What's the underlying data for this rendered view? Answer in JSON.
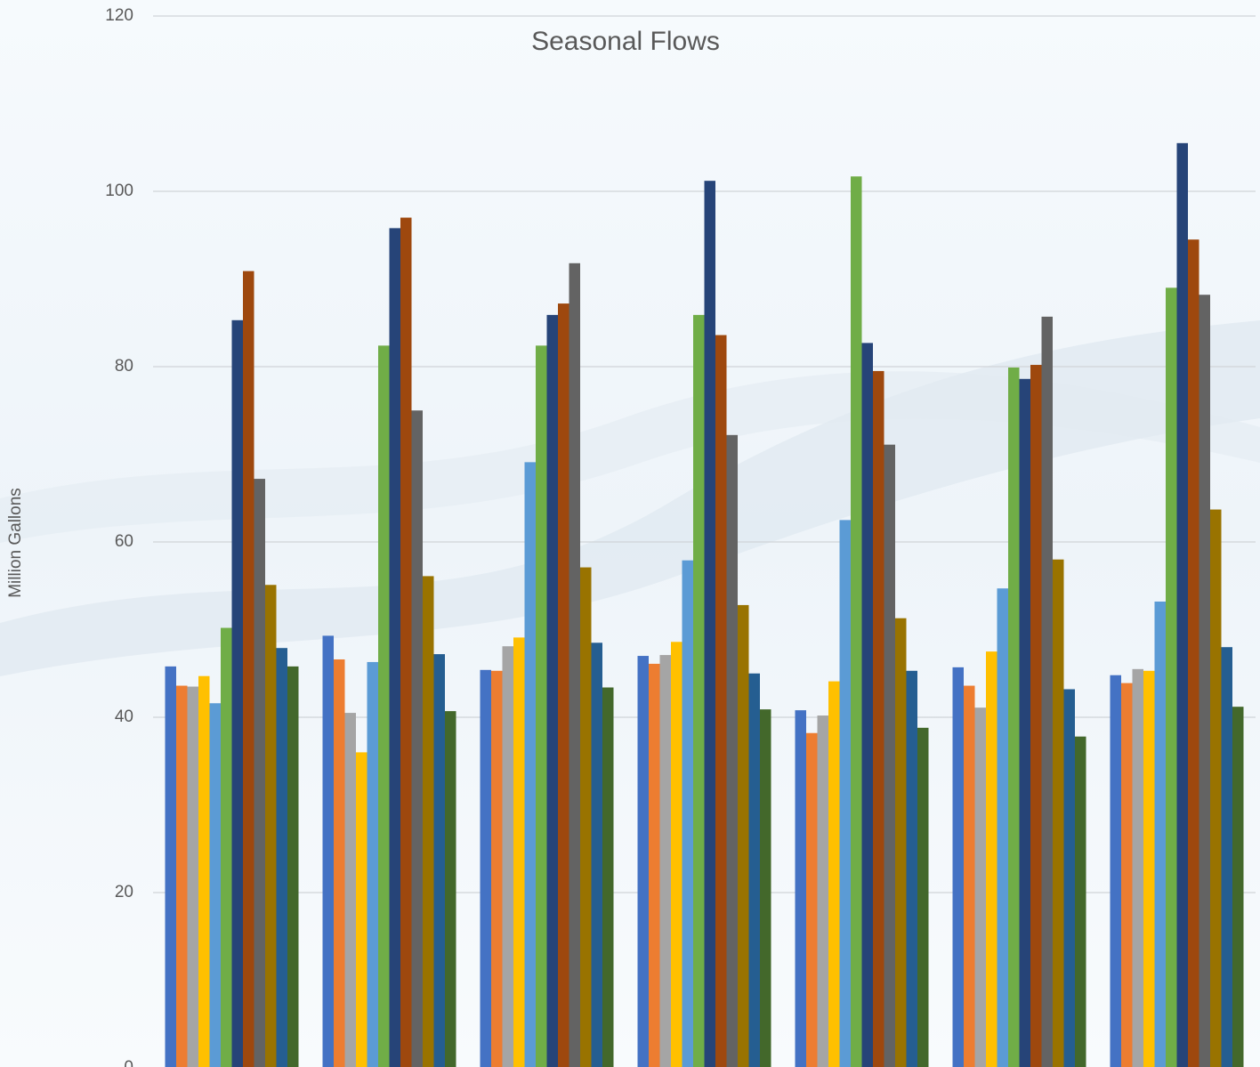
{
  "chart_data": {
    "type": "bar",
    "title": "Seasonal Flows",
    "y_label": "Million Gallons",
    "categories": [
      null,
      null,
      null,
      null,
      null,
      null,
      null
    ],
    "series": [
      {
        "color": "#4472c4",
        "values": [
          45.8,
          49.3,
          45.4,
          47.0,
          40.8,
          45.7,
          44.8
        ]
      },
      {
        "color": "#ed7d31",
        "values": [
          43.6,
          46.6,
          45.3,
          46.1,
          38.2,
          43.6,
          43.9
        ]
      },
      {
        "color": "#a5a5a5",
        "values": [
          43.5,
          40.5,
          48.1,
          47.1,
          40.2,
          41.1,
          45.5
        ]
      },
      {
        "color": "#ffc000",
        "values": [
          44.7,
          36.0,
          49.1,
          48.6,
          44.1,
          47.5,
          45.3
        ]
      },
      {
        "color": "#5b9bd5",
        "values": [
          41.6,
          46.3,
          69.1,
          57.9,
          62.5,
          54.7,
          53.2
        ]
      },
      {
        "color": "#70ad47",
        "values": [
          50.2,
          82.4,
          82.4,
          85.9,
          101.7,
          79.9,
          89.0
        ]
      },
      {
        "color": "#264478",
        "values": [
          85.3,
          95.8,
          85.9,
          101.2,
          82.7,
          78.6,
          105.5
        ]
      },
      {
        "color": "#9e480e",
        "values": [
          90.9,
          97.0,
          87.2,
          83.6,
          79.5,
          80.2,
          94.5
        ]
      },
      {
        "color": "#636363",
        "values": [
          67.2,
          75.0,
          91.8,
          72.2,
          71.1,
          85.7,
          88.2
        ]
      },
      {
        "color": "#997300",
        "values": [
          55.1,
          56.1,
          57.1,
          52.8,
          51.3,
          58.0,
          63.7
        ]
      },
      {
        "color": "#255e91",
        "values": [
          47.9,
          47.2,
          48.5,
          45.0,
          45.3,
          43.2,
          48.0
        ]
      },
      {
        "color": "#43682b",
        "values": [
          45.8,
          40.7,
          43.4,
          40.9,
          38.8,
          37.8,
          41.2
        ]
      }
    ],
    "ylim": [
      0,
      120
    ],
    "yticks": [
      0,
      20,
      40,
      60,
      80,
      100,
      120
    ],
    "grid": true
  }
}
